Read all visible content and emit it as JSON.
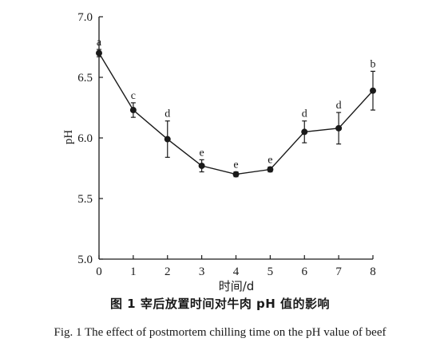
{
  "chart_data": {
    "type": "line",
    "ylabel": "pH",
    "xlabel": "时间/d",
    "x": [
      0,
      1,
      2,
      3,
      4,
      5,
      6,
      7,
      8
    ],
    "xticks": [
      "0",
      "1",
      "2",
      "3",
      "4",
      "5",
      "6",
      "7",
      "8"
    ],
    "yticks": [
      "5.0",
      "5.5",
      "6.0",
      "6.5",
      "7.0"
    ],
    "xlim": [
      0,
      8
    ],
    "ylim": [
      5.0,
      7.0
    ],
    "series": [
      {
        "values": [
          6.7,
          6.23,
          5.99,
          5.77,
          5.7,
          5.74,
          6.05,
          6.08,
          6.39
        ],
        "errors": [
          0.03,
          0.06,
          0.15,
          0.05,
          0.02,
          0.02,
          0.09,
          0.13,
          0.16
        ],
        "labels": [
          "a",
          "c",
          "d",
          "e",
          "e",
          "e",
          "d",
          "d",
          "b"
        ]
      }
    ],
    "grid": false,
    "line_color": "#1a1a1a",
    "marker": "filled-circle"
  },
  "caption": {
    "chinese": "图 1  宰后放置时间对牛肉 pH 值的影响",
    "english": "Fig. 1  The effect of postmortem chilling time on the pH value of beef"
  }
}
